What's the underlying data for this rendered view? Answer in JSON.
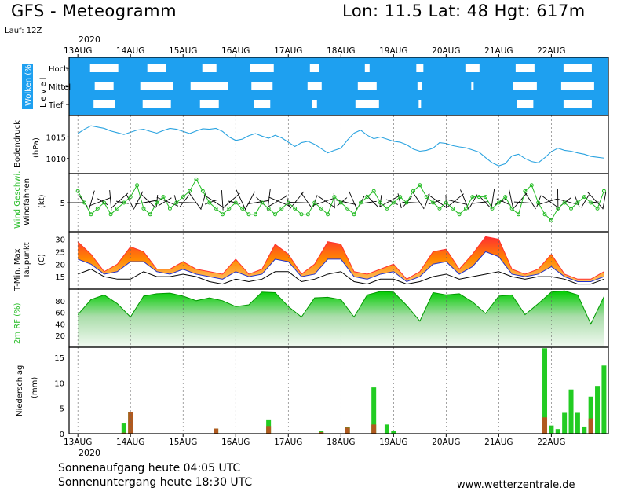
{
  "header": {
    "title": "GFS - Meteogramm",
    "coords": "Lon: 11.5  Lat: 48  Hgt: 617m",
    "run": "Lauf: 12Z",
    "year": "2020"
  },
  "footer": {
    "sunrise": "Sonnenaufgang heute 04:05 UTC",
    "sunset": "Sonnenuntergang heute 18:30 UTC",
    "credit": "www.wetterzentrale.de"
  },
  "colors": {
    "cloud_blue": "#1ea0f0",
    "pressure_line": "#2aa3e0",
    "wind_green": "#22bb22",
    "tmax_red": "#ff3030",
    "tmin_orange": "#ff9900",
    "dewpoint": "#000000",
    "rh_green": "#00cc00",
    "precip_green": "#22cc22",
    "precip_brown": "#b05a20"
  },
  "chart_data": [
    {
      "type": "area",
      "panel": "clouds",
      "ylabel": "Wolken (%)",
      "ylabel2": "Level",
      "categories": [
        "Hoch",
        "Mittel",
        "Tief"
      ],
      "x": [
        "13AUG",
        "14AUG",
        "15AUG",
        "16AUG",
        "17AUG",
        "18AUG",
        "19AUG",
        "20AUG",
        "21AUG",
        "22AUG"
      ],
      "note_series": [
        {
          "name": "Hoch",
          "values": [
            40,
            60,
            70,
            50,
            80,
            90,
            85,
            70,
            60,
            40
          ]
        },
        {
          "name": "Mittel",
          "values": [
            60,
            30,
            20,
            55,
            70,
            60,
            90,
            95,
            50,
            30
          ]
        },
        {
          "name": "Tief",
          "values": [
            55,
            40,
            60,
            65,
            90,
            50,
            95,
            100,
            65,
            40
          ]
        }
      ]
    },
    {
      "type": "line",
      "panel": "pressure",
      "ylabel": "Bodendruck",
      "ylabel2": "(hPa)",
      "ylim": [
        1006.5,
        1020
      ],
      "yticks": [
        1010,
        1015
      ],
      "x": [
        0,
        3,
        6,
        9,
        12,
        15,
        18,
        21,
        24,
        27,
        30,
        33,
        36,
        39,
        42,
        45,
        48,
        51,
        54,
        57,
        60,
        63,
        66,
        69,
        72,
        75,
        78,
        81,
        84,
        87,
        90,
        93,
        96,
        99,
        102,
        105,
        108,
        111,
        114,
        117,
        120,
        123,
        126,
        129,
        132,
        135,
        138,
        141,
        144,
        147,
        150,
        153,
        156,
        159,
        162,
        165,
        168,
        171,
        174,
        177,
        180,
        183,
        186,
        189,
        192,
        195,
        198,
        201,
        204,
        207,
        210,
        213,
        216,
        219,
        222,
        225,
        228,
        231,
        234,
        237,
        240
      ],
      "values": [
        1015.8,
        1016.8,
        1017.6,
        1017.3,
        1017.0,
        1016.4,
        1016.0,
        1015.6,
        1016.1,
        1016.6,
        1016.8,
        1016.3,
        1015.9,
        1016.5,
        1017.0,
        1016.8,
        1016.3,
        1015.8,
        1016.4,
        1016.9,
        1016.8,
        1017.0,
        1016.3,
        1015.0,
        1014.2,
        1014.5,
        1015.3,
        1015.8,
        1015.2,
        1014.7,
        1015.4,
        1014.8,
        1013.8,
        1012.8,
        1013.7,
        1014.0,
        1013.3,
        1012.3,
        1011.3,
        1011.9,
        1012.4,
        1014.3,
        1015.9,
        1016.6,
        1015.4,
        1014.6,
        1015.0,
        1014.5,
        1014.0,
        1013.8,
        1013.2,
        1012.2,
        1011.7,
        1011.9,
        1012.4,
        1013.7,
        1013.5,
        1013.0,
        1012.7,
        1012.5,
        1012.0,
        1011.5,
        1010.2,
        1009.0,
        1008.3,
        1008.8,
        1010.6,
        1011.0,
        1010.0,
        1009.3,
        1009.0,
        1010.2,
        1011.6,
        1012.4,
        1011.9,
        1011.7,
        1011.3,
        1011.0,
        1010.5,
        1010.3,
        1010.1
      ]
    },
    {
      "type": "line",
      "panel": "wind",
      "ylabel": "Wind Geschwi.",
      "ylabel_sub": "Windfahnen",
      "ylabel2": "(kt)",
      "ylim": [
        0,
        10
      ],
      "yticks": [
        5
      ],
      "x": [
        0,
        3,
        6,
        9,
        12,
        15,
        18,
        21,
        24,
        27,
        30,
        33,
        36,
        39,
        42,
        45,
        48,
        51,
        54,
        57,
        60,
        63,
        66,
        69,
        72,
        75,
        78,
        81,
        84,
        87,
        90,
        93,
        96,
        99,
        102,
        105,
        108,
        111,
        114,
        117,
        120,
        123,
        126,
        129,
        132,
        135,
        138,
        141,
        144,
        147,
        150,
        153,
        156,
        159,
        162,
        165,
        168,
        171,
        174,
        177,
        180,
        183,
        186,
        189,
        192,
        195,
        198,
        201,
        204,
        207,
        210,
        213,
        216,
        219,
        222,
        225,
        228,
        231,
        234,
        237,
        240
      ],
      "values": [
        7,
        5,
        3,
        4,
        5,
        3,
        4,
        5,
        6,
        8,
        4,
        3,
        5,
        6,
        4,
        5,
        6,
        7,
        9,
        7,
        5,
        4,
        3,
        4,
        5,
        4,
        3,
        3,
        5,
        4,
        3,
        4,
        5,
        4,
        3,
        3,
        5,
        4,
        3,
        6,
        5,
        4,
        3,
        5,
        6,
        7,
        5,
        4,
        5,
        6,
        5,
        7,
        8,
        6,
        5,
        4,
        5,
        4,
        3,
        4,
        6,
        6,
        6,
        4,
        5,
        6,
        4,
        3,
        7,
        8,
        5,
        3,
        2,
        4,
        5,
        4,
        5,
        6,
        5,
        4,
        7
      ]
    },
    {
      "type": "area",
      "panel": "temperature",
      "ylabel": "T-Min, Max",
      "ylabel_sub": "Taupunkt",
      "ylabel2": "(C)",
      "ylim": [
        10,
        33
      ],
      "yticks": [
        15,
        20,
        25,
        30
      ],
      "x": [
        0,
        6,
        12,
        18,
        24,
        30,
        36,
        42,
        48,
        54,
        60,
        66,
        72,
        78,
        84,
        90,
        96,
        102,
        108,
        114,
        120,
        126,
        132,
        138,
        144,
        150,
        156,
        162,
        168,
        174,
        180,
        186,
        192,
        198,
        204,
        210,
        216,
        222,
        228,
        234,
        240
      ],
      "series": [
        {
          "name": "Max",
          "values": [
            29,
            24,
            17,
            20,
            27,
            25,
            18,
            18,
            21,
            18,
            17,
            16,
            22,
            16,
            18,
            28,
            24,
            16,
            20,
            29,
            28,
            17,
            16,
            18,
            20,
            14,
            17,
            25,
            26,
            18,
            24,
            31,
            30,
            18,
            16,
            18,
            24,
            16,
            14,
            14,
            17
          ]
        },
        {
          "name": "Min",
          "values": [
            22,
            20,
            16,
            17,
            21,
            21,
            17,
            16,
            18,
            16,
            15,
            14,
            17,
            15,
            16,
            22,
            21,
            15,
            16,
            22,
            22,
            15,
            14,
            16,
            17,
            13,
            15,
            20,
            21,
            16,
            19,
            25,
            23,
            16,
            15,
            16,
            19,
            15,
            13,
            13,
            15
          ]
        },
        {
          "name": "Taupunkt",
          "values": [
            16,
            18,
            15,
            14,
            14,
            17,
            15,
            15,
            16,
            15,
            13,
            12,
            14,
            13,
            14,
            17,
            17,
            13,
            14,
            16,
            17,
            13,
            12,
            14,
            14,
            12,
            13,
            15,
            16,
            14,
            15,
            16,
            17,
            15,
            14,
            15,
            15,
            14,
            12,
            12,
            14
          ]
        }
      ]
    },
    {
      "type": "area",
      "panel": "humidity",
      "ylabel": "2m RF (%)",
      "ylim": [
        0,
        100
      ],
      "yticks": [
        20,
        40,
        60,
        80
      ],
      "x": [
        0,
        6,
        12,
        18,
        24,
        30,
        36,
        42,
        48,
        54,
        60,
        66,
        72,
        78,
        84,
        90,
        96,
        102,
        108,
        114,
        120,
        126,
        132,
        138,
        144,
        150,
        156,
        162,
        168,
        174,
        180,
        186,
        192,
        198,
        204,
        210,
        216,
        222,
        228,
        234,
        240
      ],
      "values": [
        56,
        82,
        90,
        75,
        52,
        88,
        92,
        93,
        88,
        80,
        85,
        80,
        70,
        73,
        95,
        94,
        70,
        52,
        85,
        86,
        82,
        52,
        90,
        96,
        95,
        72,
        45,
        94,
        90,
        92,
        78,
        58,
        88,
        90,
        56,
        75,
        95,
        97,
        90,
        40,
        87
      ]
    },
    {
      "type": "bar",
      "panel": "precipitation",
      "ylabel": "Niederschlag",
      "ylabel2": "(mm)",
      "ylim": [
        0,
        17
      ],
      "yticks": [
        0,
        5,
        10,
        15
      ],
      "x": [
        21,
        24,
        63,
        87,
        111,
        123,
        135,
        141,
        144,
        213,
        216,
        219,
        222,
        225,
        228,
        231,
        234,
        237,
        240
      ],
      "series": [
        {
          "name": "total",
          "values": [
            2,
            4.3,
            1,
            2.8,
            0.6,
            1.3,
            9.1,
            1.8,
            0.5,
            16.8,
            1.6,
            0.9,
            4.1,
            8.7,
            4.1,
            1.4,
            7.3,
            9.4,
            13.4
          ]
        },
        {
          "name": "convective",
          "values": [
            0.2,
            4.3,
            1,
            1.5,
            0.3,
            1.2,
            1.8,
            0,
            0,
            3.2,
            0,
            0,
            0,
            0,
            0,
            0,
            3,
            0,
            0
          ]
        }
      ]
    }
  ],
  "x_axis": {
    "labels": [
      "13AUG",
      "14AUG",
      "15AUG",
      "16AUG",
      "17AUG",
      "18AUG",
      "19AUG",
      "20AUG",
      "21AUG",
      "22AUG"
    ]
  }
}
